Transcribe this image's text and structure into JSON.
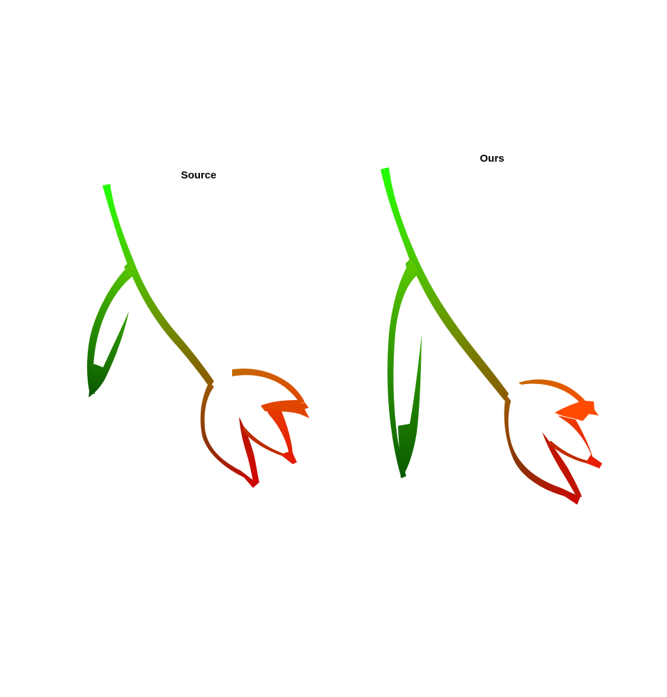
{
  "panels": [
    {
      "title": "Source"
    },
    {
      "title": "Ours"
    }
  ],
  "colors": {
    "top_green": "#22ff00",
    "mid_green": "#5ab000",
    "dark_green": "#0e6a00",
    "olive": "#7a7800",
    "brown": "#8a4a08",
    "red": "#cc0a00",
    "orange": "#e24a00",
    "orange_light": "#ff4a00",
    "amber": "#c46a00"
  }
}
